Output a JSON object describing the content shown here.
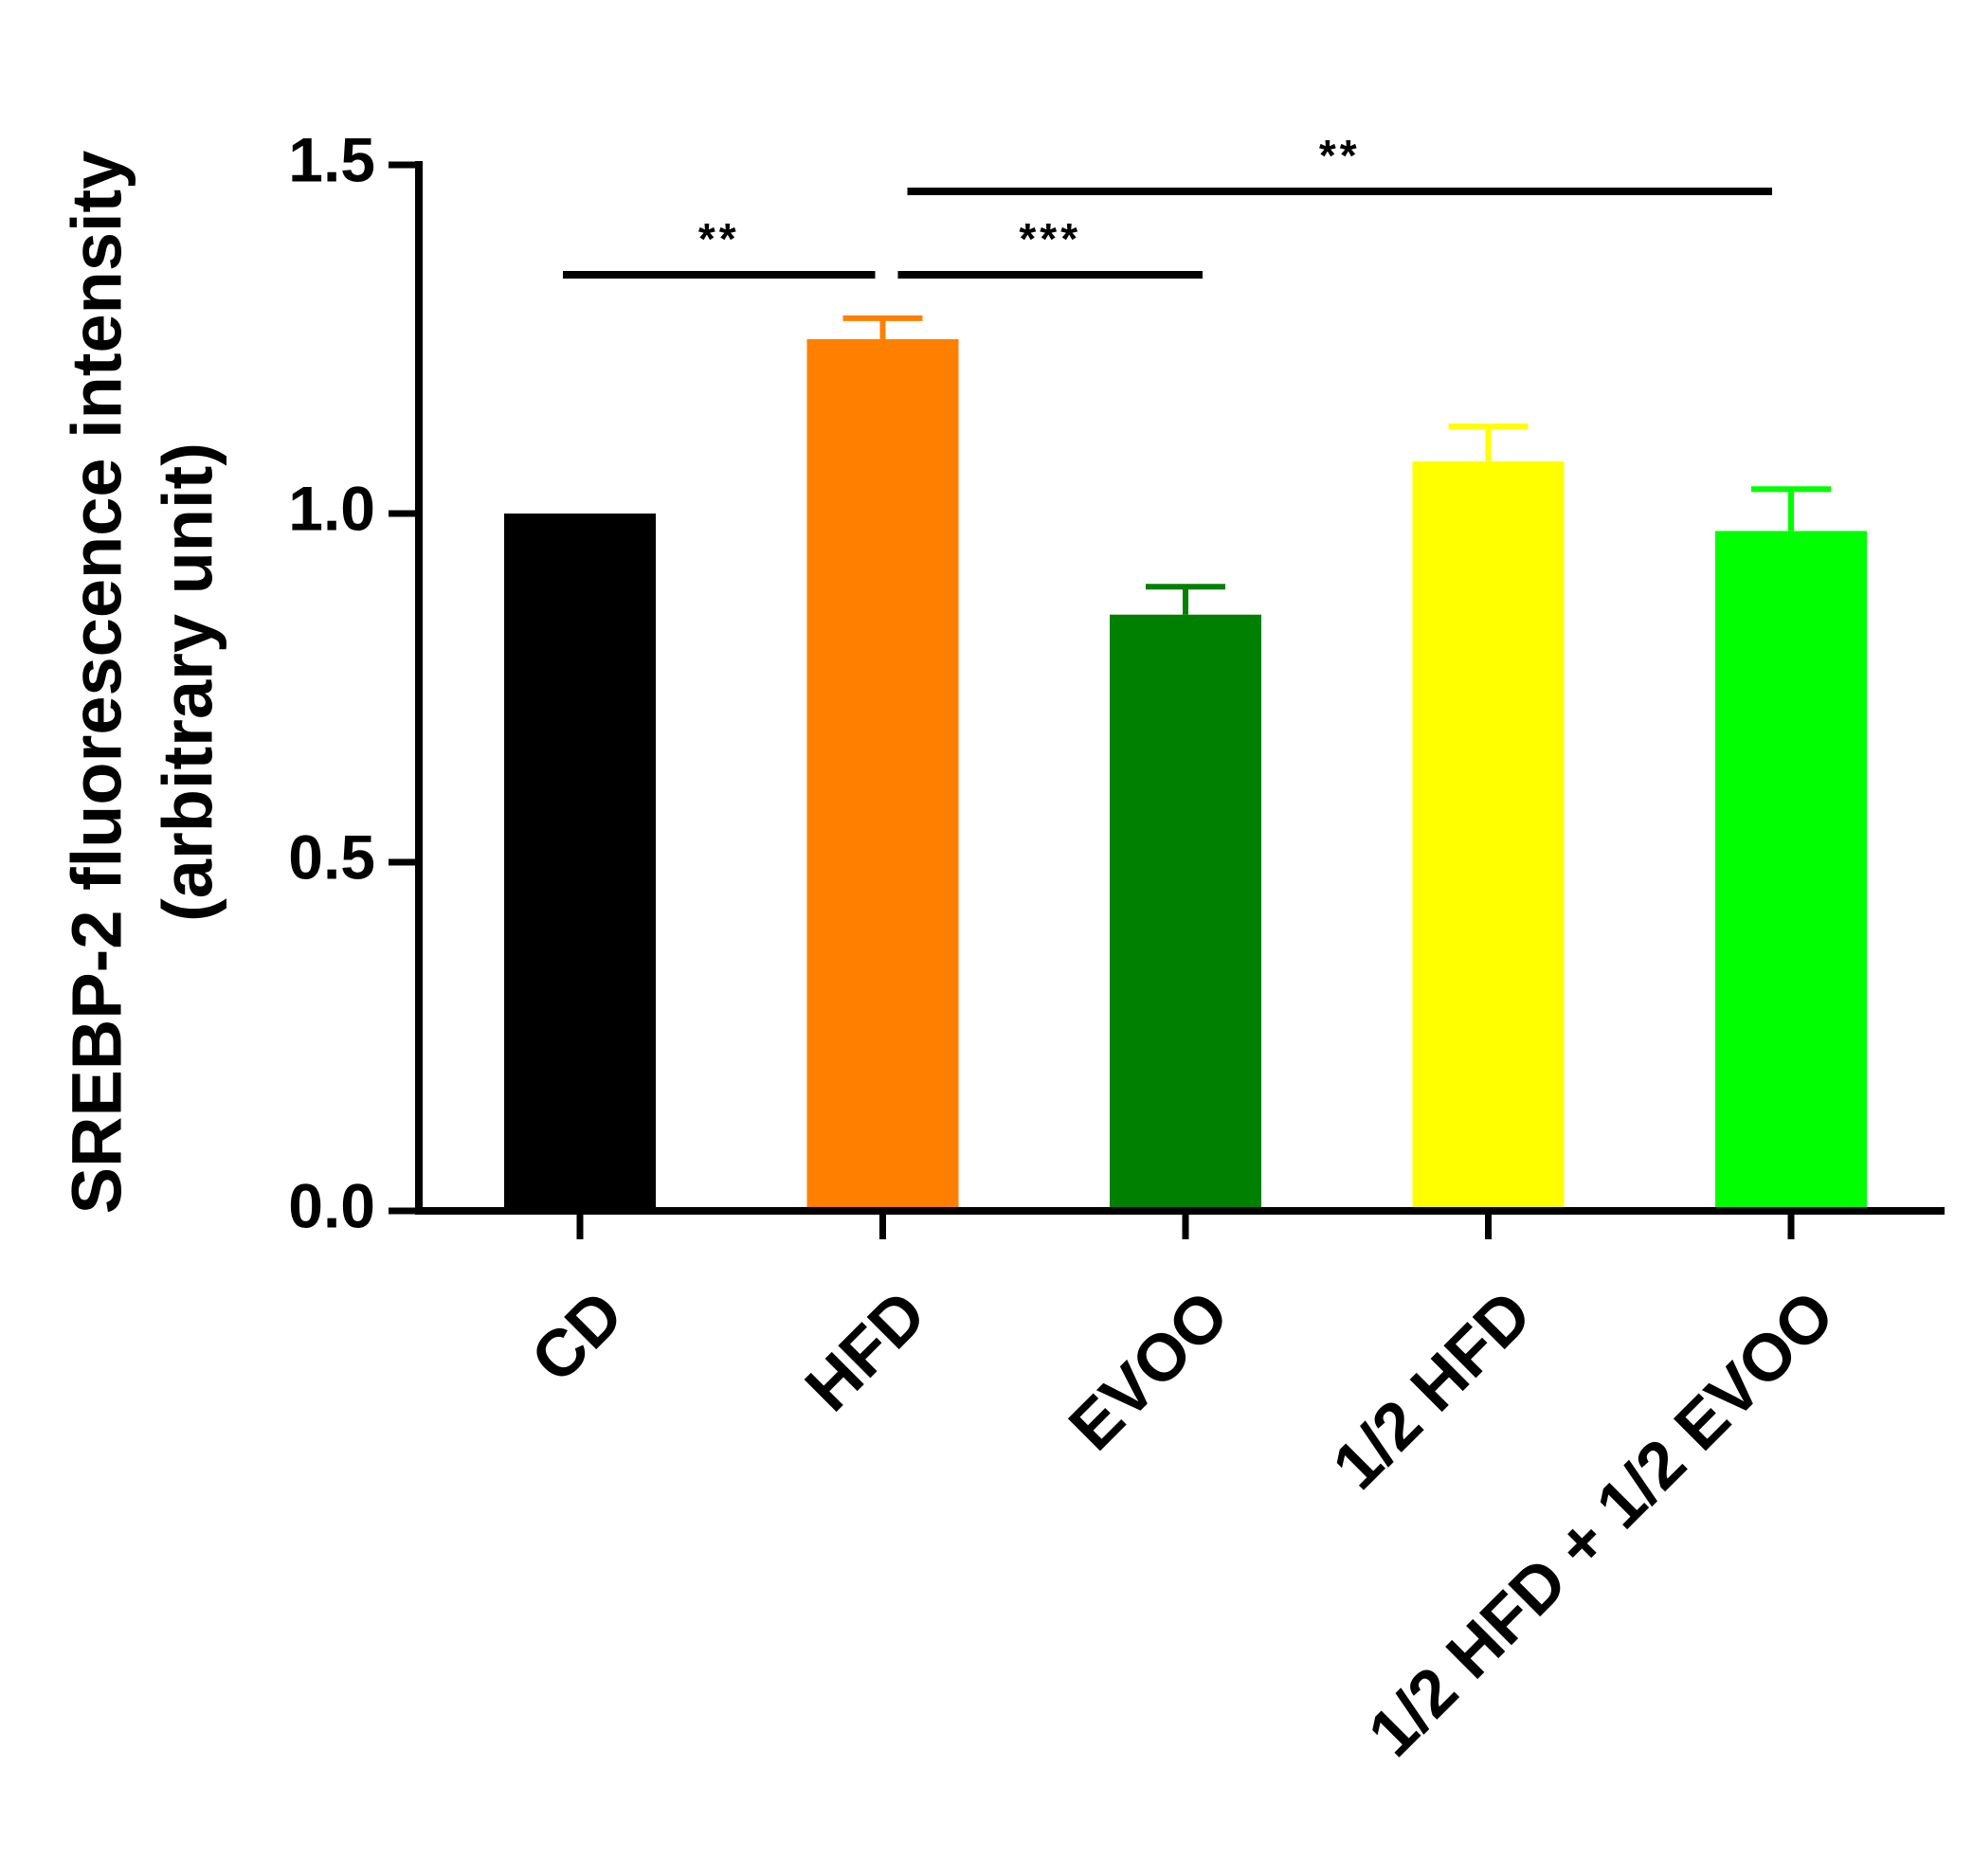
{
  "chart_data": {
    "type": "bar",
    "title": "",
    "xlabel": "",
    "ylabel": "SREBP-2 fluorescence intensity",
    "ylabel_line2": "(arbitrary unit)",
    "categories": [
      "CD",
      "HFD",
      "EVOO",
      "1/2 HFD",
      "1/2 HFD + 1/2 EVOO"
    ],
    "values": [
      1.0,
      1.25,
      0.855,
      1.075,
      0.975
    ],
    "errors": [
      0.0,
      0.03,
      0.04,
      0.05,
      0.06
    ],
    "colors": [
      "#000000",
      "#ff8000",
      "#008000",
      "#ffff00",
      "#00ff00"
    ],
    "ylim": [
      0,
      1.5
    ],
    "yticks": [
      "0.0",
      "0.5",
      "1.0",
      "1.5"
    ],
    "grid": false,
    "legend": "none",
    "significance": [
      {
        "from": "CD",
        "to": "HFD",
        "label": "**"
      },
      {
        "from": "HFD",
        "to": "EVOO",
        "label": "***"
      },
      {
        "from": "HFD",
        "to": "1/2 HFD + 1/2 EVOO",
        "label": "**"
      }
    ]
  }
}
